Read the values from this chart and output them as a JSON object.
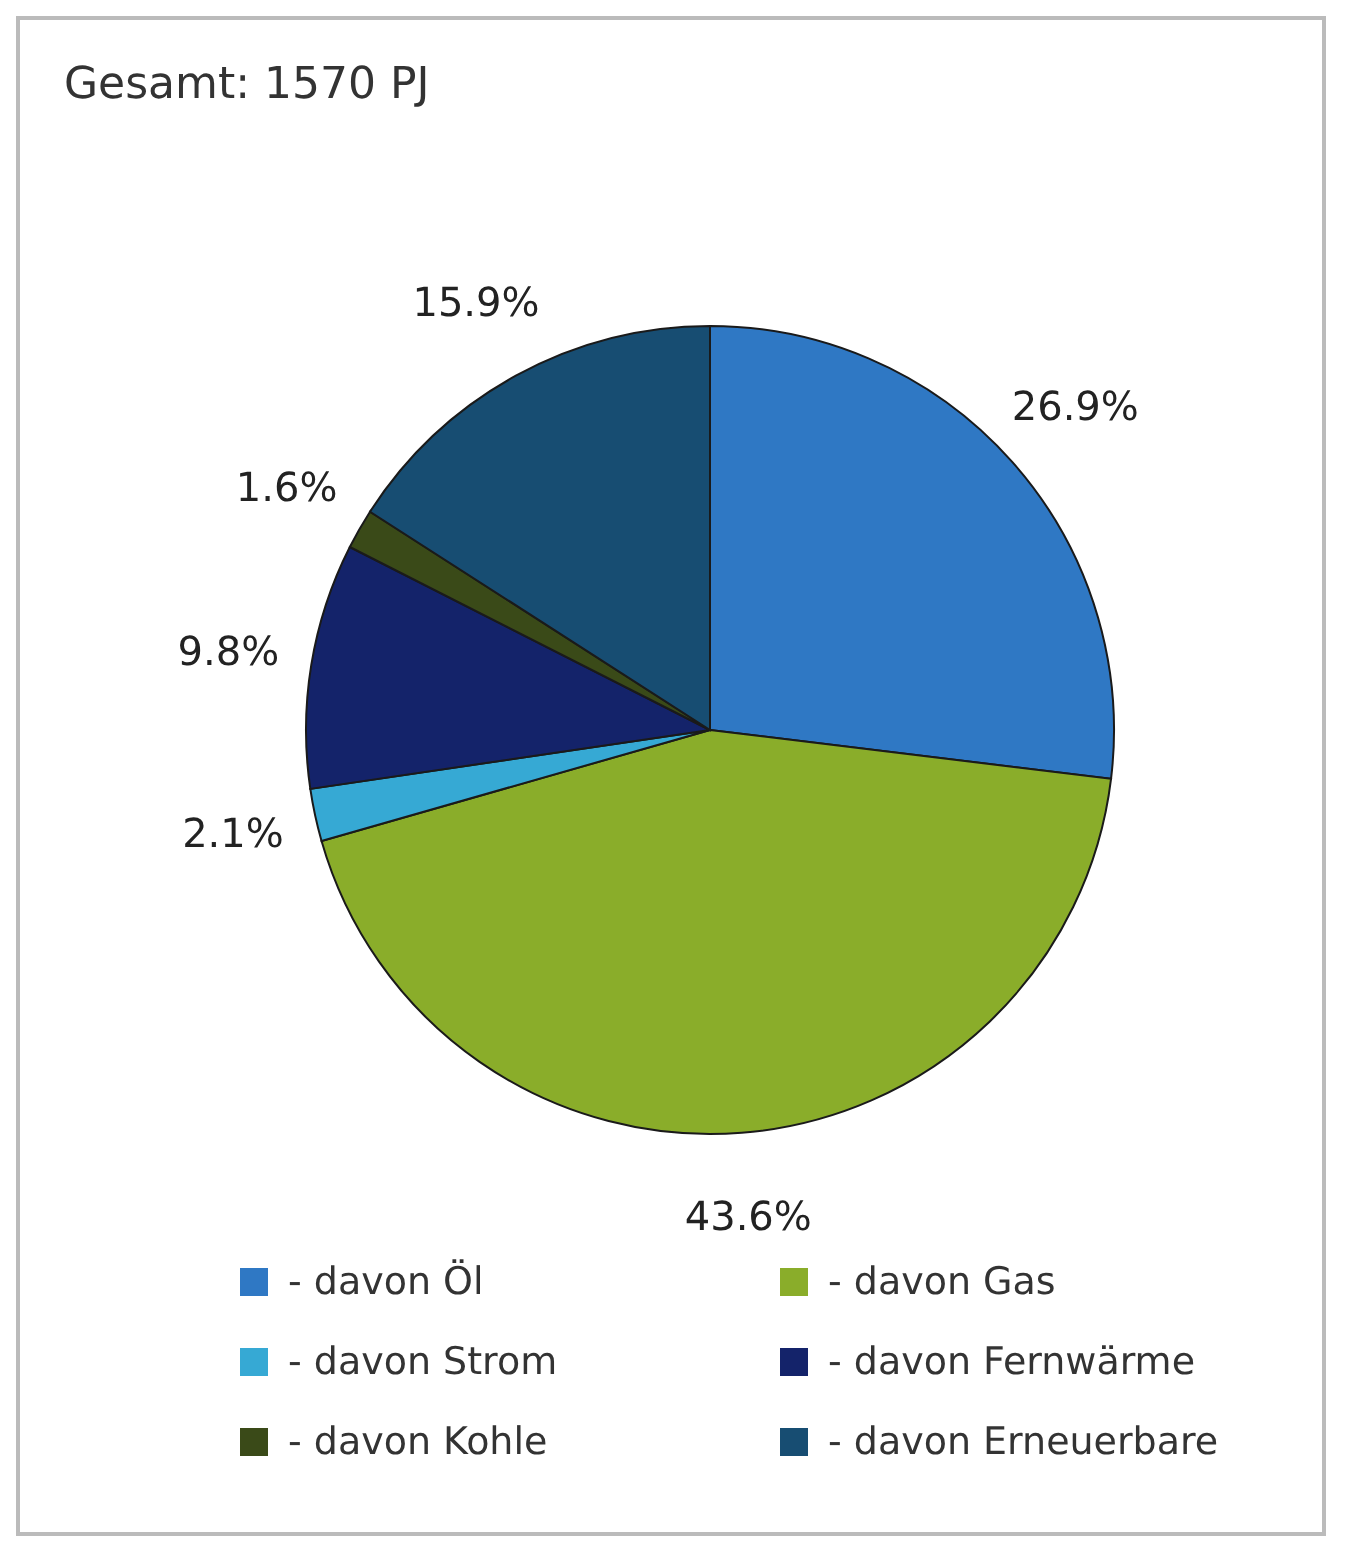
{
  "chart_data": {
    "type": "pie",
    "title": "Gesamt: 1570 PJ",
    "categories": [
      "- davon Öl",
      "- davon Gas",
      "- davon Strom",
      "- davon Fernwärme",
      "- davon Kohle",
      "- davon Erneuerbare"
    ],
    "values": [
      26.9,
      43.6,
      2.1,
      9.8,
      1.6,
      15.9
    ],
    "value_labels": [
      "26.9%",
      "43.6%",
      "2.1%",
      "9.8%",
      "1.6%",
      "15.9%"
    ],
    "colors": [
      "#2f78c4",
      "#8aad2a",
      "#36a9d4",
      "#14236a",
      "#3a4a18",
      "#174d72"
    ],
    "legend": "bottom"
  }
}
